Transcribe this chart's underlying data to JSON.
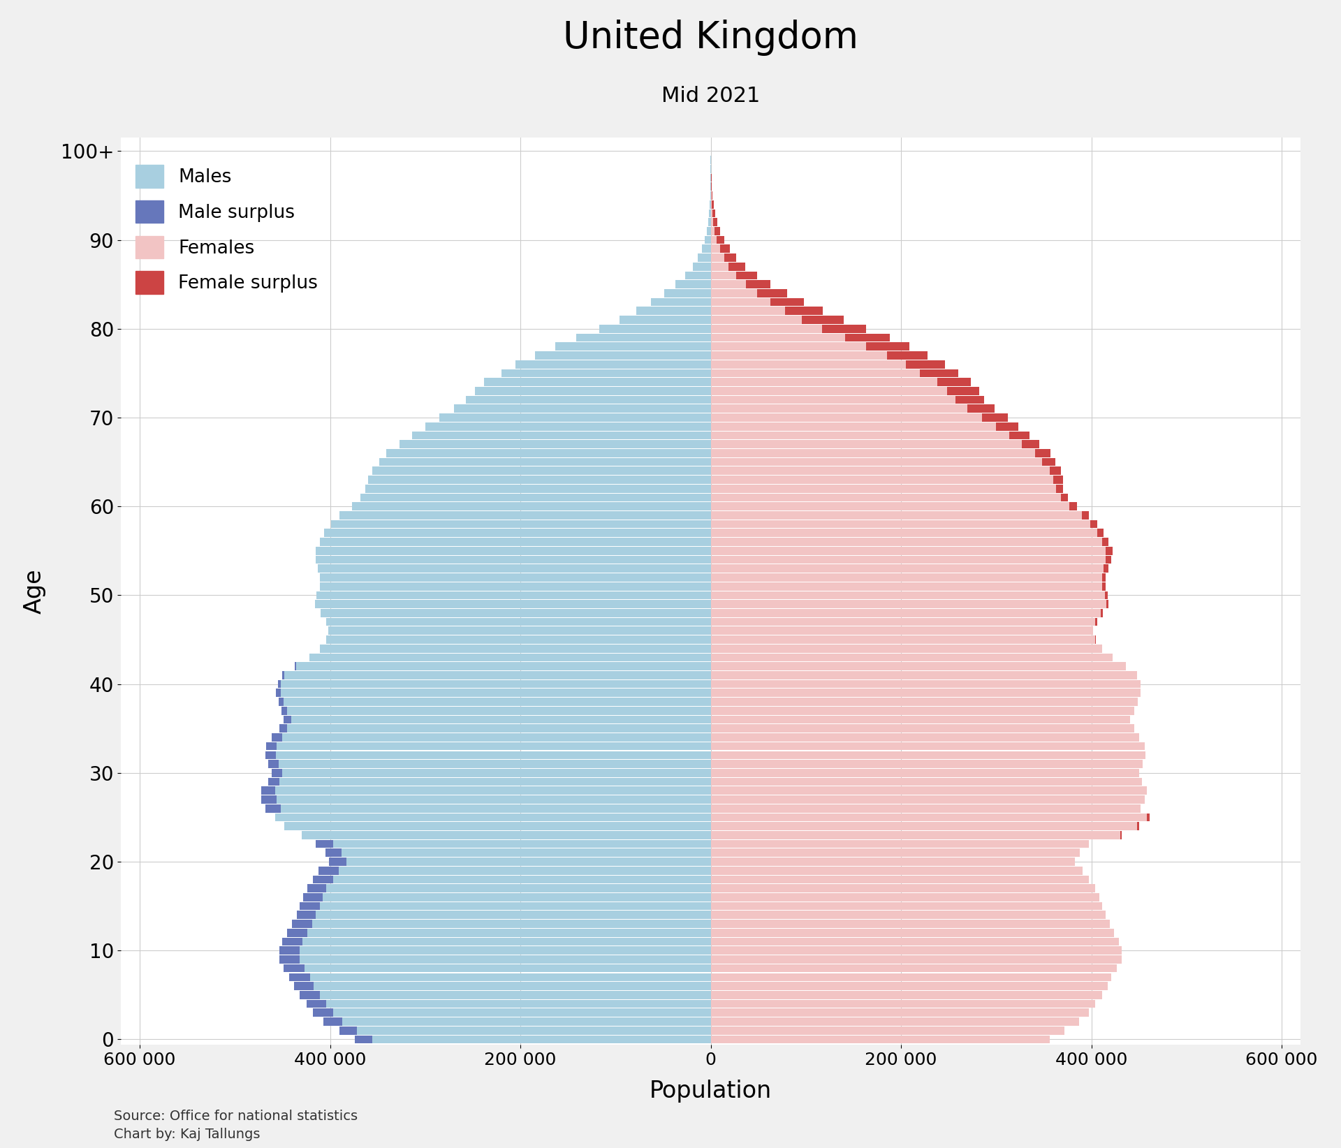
{
  "title": "United Kingdom",
  "subtitle": "Mid 2021",
  "xlabel": "Population",
  "ylabel": "Age",
  "source_line1": "Source: Office for national statistics",
  "source_line2": "Chart by: Kaj Tallungs",
  "background_color": "#f0f0f0",
  "plot_background": "#ffffff",
  "male_color": "#a8cfe0",
  "male_surplus_color": "#6677bb",
  "female_color": "#f2c4c4",
  "female_surplus_color": "#cc4444",
  "xlim": 620000,
  "ages": [
    0,
    1,
    2,
    3,
    4,
    5,
    6,
    7,
    8,
    9,
    10,
    11,
    12,
    13,
    14,
    15,
    16,
    17,
    18,
    19,
    20,
    21,
    22,
    23,
    24,
    25,
    26,
    27,
    28,
    29,
    30,
    31,
    32,
    33,
    34,
    35,
    36,
    37,
    38,
    39,
    40,
    41,
    42,
    43,
    44,
    45,
    46,
    47,
    48,
    49,
    50,
    51,
    52,
    53,
    54,
    55,
    56,
    57,
    58,
    59,
    60,
    61,
    62,
    63,
    64,
    65,
    66,
    67,
    68,
    69,
    70,
    71,
    72,
    73,
    74,
    75,
    76,
    77,
    78,
    79,
    80,
    81,
    82,
    83,
    84,
    85,
    86,
    87,
    88,
    89,
    90,
    91,
    92,
    93,
    94,
    95,
    96,
    97,
    98,
    99,
    100
  ],
  "males": [
    374000,
    390000,
    407000,
    418000,
    425000,
    432000,
    438000,
    443000,
    449000,
    453000,
    453000,
    450000,
    445000,
    440000,
    435000,
    432000,
    428000,
    424000,
    418000,
    412000,
    401000,
    405000,
    415000,
    430000,
    448000,
    458000,
    468000,
    472000,
    472000,
    465000,
    461000,
    465000,
    468000,
    467000,
    461000,
    453000,
    449000,
    451000,
    454000,
    457000,
    455000,
    450000,
    437000,
    422000,
    411000,
    404000,
    402000,
    404000,
    410000,
    416000,
    414000,
    411000,
    411000,
    413000,
    415000,
    415000,
    411000,
    406000,
    399000,
    390000,
    377000,
    368000,
    363000,
    360000,
    356000,
    348000,
    341000,
    327000,
    314000,
    300000,
    285000,
    270000,
    257000,
    248000,
    238000,
    220000,
    205000,
    185000,
    163000,
    141000,
    117000,
    96000,
    78000,
    63000,
    49000,
    37000,
    27000,
    19000,
    14000,
    9500,
    6500,
    4300,
    2800,
    1800,
    1100,
    700,
    400,
    250,
    150,
    90,
    50
  ],
  "females": [
    356000,
    372000,
    387000,
    397000,
    404000,
    411000,
    417000,
    421000,
    427000,
    432000,
    432000,
    429000,
    424000,
    419000,
    415000,
    411000,
    408000,
    404000,
    397000,
    391000,
    383000,
    388000,
    397000,
    432000,
    450000,
    461000,
    452000,
    456000,
    458000,
    453000,
    450000,
    454000,
    457000,
    456000,
    450000,
    445000,
    441000,
    445000,
    449000,
    452000,
    452000,
    448000,
    436000,
    422000,
    411000,
    405000,
    402000,
    406000,
    412000,
    418000,
    417000,
    415000,
    415000,
    418000,
    421000,
    422000,
    418000,
    413000,
    406000,
    397000,
    385000,
    375000,
    370000,
    370000,
    368000,
    362000,
    357000,
    345000,
    335000,
    323000,
    312000,
    298000,
    287000,
    282000,
    273000,
    260000,
    246000,
    228000,
    209000,
    188000,
    163000,
    140000,
    118000,
    98000,
    80000,
    63000,
    49000,
    36000,
    27000,
    20000,
    14500,
    10200,
    6800,
    4600,
    3100,
    2100,
    1300,
    840,
    520,
    325,
    185
  ],
  "yticks": [
    0,
    10,
    20,
    30,
    40,
    50,
    60,
    70,
    80,
    90,
    100
  ],
  "ytick_labels": [
    "0",
    "10",
    "20",
    "30",
    "40",
    "50",
    "60",
    "70",
    "80",
    "90",
    "100+"
  ]
}
